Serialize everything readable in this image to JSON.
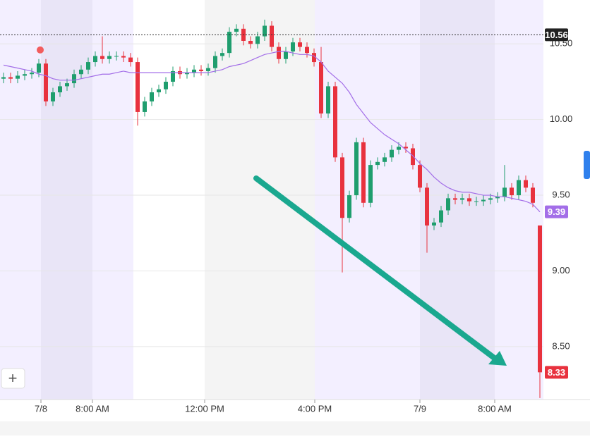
{
  "chart_data": {
    "type": "candlestick",
    "x": [
      0,
      1,
      2,
      3,
      4,
      5,
      6,
      7,
      8,
      9,
      10,
      11,
      12,
      13,
      14,
      15,
      16,
      17,
      18,
      19,
      20,
      21,
      22,
      23,
      24,
      25,
      26,
      27,
      28,
      29,
      30,
      31,
      32,
      33,
      34,
      35,
      36,
      37,
      38,
      39,
      40,
      41,
      42,
      43,
      44,
      45,
      46,
      47,
      48,
      49,
      50,
      51,
      52,
      53,
      54,
      55,
      56,
      57,
      58,
      59,
      60,
      61,
      62,
      63,
      64,
      65,
      66,
      67,
      68,
      69,
      70,
      71,
      72,
      73,
      74,
      75,
      76
    ],
    "open": [
      10.27,
      10.28,
      10.27,
      10.29,
      10.3,
      10.31,
      10.37,
      10.12,
      10.18,
      10.22,
      10.24,
      10.3,
      10.33,
      10.38,
      10.42,
      10.4,
      10.42,
      10.42,
      10.41,
      10.38,
      10.05,
      10.12,
      10.18,
      10.2,
      10.25,
      10.32,
      10.3,
      10.31,
      10.33,
      10.32,
      10.34,
      10.42,
      10.44,
      10.58,
      10.6,
      10.52,
      10.5,
      10.55,
      10.62,
      10.48,
      10.4,
      10.45,
      10.51,
      10.48,
      10.44,
      10.38,
      10.04,
      10.22,
      9.75,
      9.35,
      9.5,
      9.85,
      9.45,
      9.7,
      9.72,
      9.75,
      9.8,
      9.82,
      9.81,
      9.7,
      9.55,
      9.3,
      9.32,
      9.4,
      9.48,
      9.47,
      9.48,
      9.46,
      9.46,
      9.47,
      9.48,
      9.49,
      9.55,
      9.5,
      9.6,
      9.55,
      9.3
    ],
    "high": [
      10.31,
      10.31,
      10.32,
      10.33,
      10.34,
      10.4,
      10.4,
      10.21,
      10.25,
      10.27,
      10.33,
      10.36,
      10.41,
      10.45,
      10.55,
      10.45,
      10.45,
      10.45,
      10.44,
      10.41,
      10.15,
      10.21,
      10.23,
      10.28,
      10.35,
      10.35,
      10.34,
      10.36,
      10.36,
      10.37,
      10.45,
      10.47,
      10.61,
      10.63,
      10.63,
      10.55,
      10.58,
      10.66,
      10.65,
      10.51,
      10.48,
      10.54,
      10.54,
      10.51,
      10.47,
      10.48,
      10.25,
      10.25,
      9.78,
      9.53,
      9.88,
      9.88,
      9.73,
      9.75,
      9.78,
      9.83,
      9.85,
      9.85,
      9.84,
      9.73,
      9.58,
      9.35,
      9.43,
      9.51,
      9.51,
      9.51,
      9.51,
      9.49,
      9.5,
      9.51,
      9.52,
      9.7,
      9.58,
      9.63,
      9.63,
      9.58,
      9.3
    ],
    "low": [
      10.24,
      10.24,
      10.24,
      10.26,
      10.27,
      10.28,
      10.09,
      10.09,
      10.15,
      10.19,
      10.21,
      10.27,
      10.3,
      10.35,
      10.37,
      10.37,
      10.39,
      10.38,
      10.35,
      9.96,
      10.02,
      10.09,
      10.15,
      10.17,
      10.22,
      10.27,
      10.27,
      10.28,
      10.29,
      10.29,
      10.31,
      10.39,
      10.41,
      10.55,
      10.49,
      10.47,
      10.47,
      10.52,
      10.45,
      10.37,
      10.37,
      10.42,
      10.45,
      10.41,
      10.35,
      10.01,
      10.01,
      9.72,
      8.99,
      9.32,
      9.47,
      9.42,
      9.42,
      9.67,
      9.69,
      9.72,
      9.77,
      9.78,
      9.67,
      9.52,
      9.12,
      9.27,
      9.29,
      9.37,
      9.44,
      9.44,
      9.43,
      9.43,
      9.43,
      9.44,
      9.45,
      9.46,
      9.47,
      9.47,
      9.52,
      9.42,
      8.16
    ],
    "close": [
      10.28,
      10.27,
      10.29,
      10.3,
      10.31,
      10.37,
      10.12,
      10.18,
      10.22,
      10.24,
      10.3,
      10.33,
      10.38,
      10.42,
      10.4,
      10.42,
      10.42,
      10.41,
      10.38,
      10.05,
      10.12,
      10.18,
      10.2,
      10.25,
      10.32,
      10.3,
      10.31,
      10.33,
      10.32,
      10.34,
      10.42,
      10.44,
      10.58,
      10.6,
      10.52,
      10.5,
      10.55,
      10.62,
      10.48,
      10.4,
      10.45,
      10.51,
      10.48,
      10.44,
      10.38,
      10.04,
      10.22,
      9.75,
      9.35,
      9.5,
      9.85,
      9.45,
      9.7,
      9.72,
      9.75,
      9.8,
      9.82,
      9.81,
      9.7,
      9.55,
      9.3,
      9.32,
      9.4,
      9.48,
      9.47,
      9.48,
      9.46,
      9.46,
      9.47,
      9.48,
      9.49,
      9.55,
      9.5,
      9.6,
      9.55,
      9.45,
      8.33
    ],
    "ma": [
      10.36,
      10.35,
      10.34,
      10.33,
      10.32,
      10.3,
      10.29,
      10.27,
      10.26,
      10.26,
      10.26,
      10.27,
      10.28,
      10.29,
      10.3,
      10.3,
      10.31,
      10.32,
      10.31,
      10.31,
      10.31,
      10.31,
      10.31,
      10.31,
      10.31,
      10.31,
      10.31,
      10.31,
      10.31,
      10.31,
      10.32,
      10.33,
      10.35,
      10.36,
      10.37,
      10.39,
      10.41,
      10.43,
      10.44,
      10.45,
      10.45,
      10.44,
      10.43,
      10.43,
      10.42,
      10.38,
      10.32,
      10.28,
      10.24,
      10.18,
      10.1,
      10.04,
      9.98,
      9.94,
      9.9,
      9.87,
      9.84,
      9.8,
      9.76,
      9.71,
      9.67,
      9.62,
      9.58,
      9.55,
      9.53,
      9.52,
      9.52,
      9.51,
      9.5,
      9.5,
      9.49,
      9.49,
      9.48,
      9.47,
      9.46,
      9.44,
      9.39
    ],
    "up_color": "#1f9e6e",
    "down_color": "#e8323e",
    "ma_color": "#a36ee8",
    "reference_line": {
      "value": 10.56,
      "label": "10.56"
    },
    "marker": {
      "x": 5.2,
      "value": 10.46,
      "color": "#f25d5d"
    },
    "xlim": [
      -0.5,
      76.5
    ],
    "ylim": [
      8.15,
      10.79
    ],
    "xticks": [
      {
        "value": 5.3,
        "label": "7/8"
      },
      {
        "value": 12.6,
        "label": "8:00 AM"
      },
      {
        "value": 28.5,
        "label": "12:00 PM"
      },
      {
        "value": 44.1,
        "label": "4:00 PM"
      },
      {
        "value": 59,
        "label": "7/9"
      },
      {
        "value": 69.6,
        "label": "8:00 AM"
      }
    ],
    "yticks": [
      {
        "value": 8.5,
        "label": "8.50"
      },
      {
        "value": 9,
        "label": "9.00"
      },
      {
        "value": 9.5,
        "label": "9.50"
      },
      {
        "value": 10,
        "label": "10.00"
      },
      {
        "value": 10.5,
        "label": "10.50"
      }
    ],
    "grid": true,
    "zoom_button": "+"
  }
}
